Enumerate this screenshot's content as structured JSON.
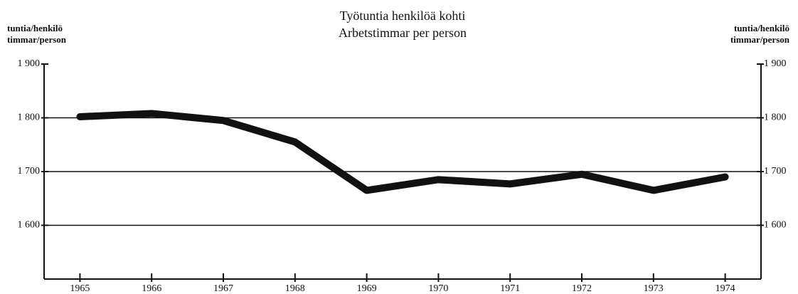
{
  "chart_data": {
    "type": "line",
    "title": [
      "Työtuntia henkilöä kohti",
      "Arbetstimmar per person"
    ],
    "ylabel": [
      "tuntia/henkilö",
      "timmar/person"
    ],
    "y2label": [
      "tuntia/henkilö",
      "timmar/person"
    ],
    "categories": [
      "1965",
      "1966",
      "1967",
      "1968",
      "1969",
      "1970",
      "1971",
      "1972",
      "1973",
      "1974"
    ],
    "series": [
      {
        "color": "#111111",
        "values": [
          1802,
          1808,
          1795,
          1755,
          1665,
          1685,
          1677,
          1695,
          1665,
          1690
        ]
      }
    ],
    "ylim": [
      1500,
      1900
    ],
    "yticks": [
      {
        "value": 1600,
        "label": "1 600"
      },
      {
        "value": 1700,
        "label": "1 700"
      },
      {
        "value": 1800,
        "label": "1 800"
      },
      {
        "value": 1900,
        "label": "1 900"
      }
    ],
    "y2lim": [
      1500,
      1900
    ],
    "y2ticks": [
      {
        "value": 1600,
        "label": "1 600"
      },
      {
        "value": 1700,
        "label": "1 700"
      },
      {
        "value": 1800,
        "label": "1 800"
      },
      {
        "value": 1900,
        "label": "1 900"
      }
    ],
    "grid": true
  }
}
